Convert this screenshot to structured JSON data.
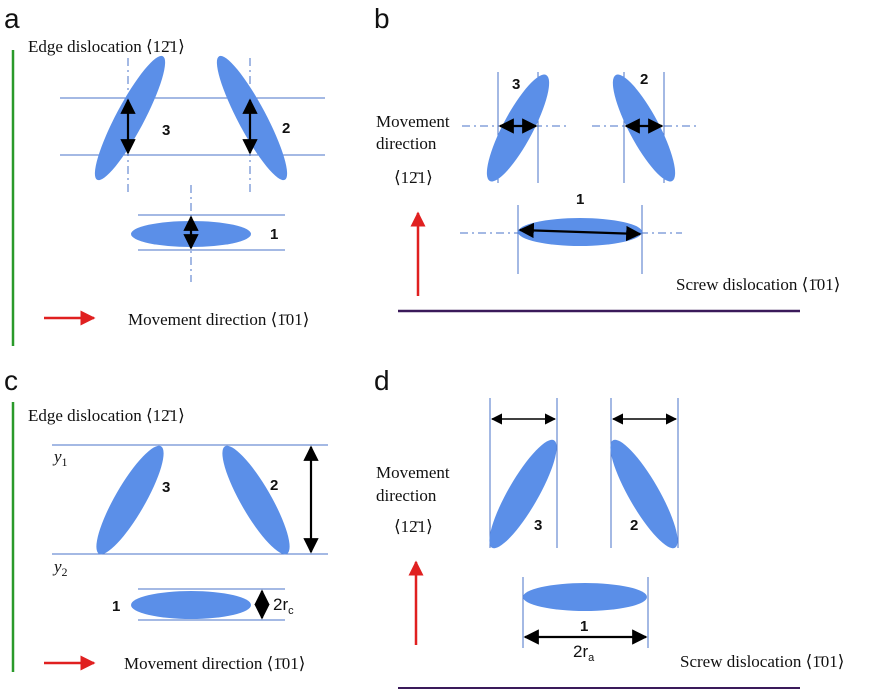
{
  "colors": {
    "ellipse": "#5b8fe8",
    "guide": "#4a73c8",
    "arrow": "#000000",
    "red_arrow": "#e02020",
    "green_bar": "#2a9a2a",
    "purple_bar": "#3a1a5a"
  },
  "panel_a": {
    "letter": "a",
    "edge_label": "Edge dislocation ⟨12̄1⟩",
    "movement_label": "Movement direction ⟨1̄01⟩",
    "labels": [
      "3",
      "2",
      "1"
    ]
  },
  "panel_b": {
    "letter": "b",
    "movement_line1": "Movement",
    "movement_line2": "direction",
    "movement_line3": "⟨12̄1⟩",
    "screw_label": "Screw dislocation ⟨1̄01⟩",
    "labels": [
      "3",
      "2",
      "1"
    ]
  },
  "panel_c": {
    "letter": "c",
    "edge_label": "Edge dislocation ⟨12̄1⟩",
    "movement_label": "Movement direction ⟨1̄01⟩",
    "y1": "y",
    "y1_sub": "1",
    "y2": "y",
    "y2_sub": "2",
    "rc": "2r",
    "rc_sub": "c",
    "labels": [
      "3",
      "2",
      "1"
    ]
  },
  "panel_d": {
    "letter": "d",
    "movement_line1": "Movement",
    "movement_line2": "direction",
    "movement_line3": "⟨12̄1⟩",
    "screw_label": "Screw dislocation ⟨1̄01⟩",
    "ra": "2r",
    "ra_sub": "a",
    "labels": [
      "3",
      "2",
      "1"
    ]
  }
}
